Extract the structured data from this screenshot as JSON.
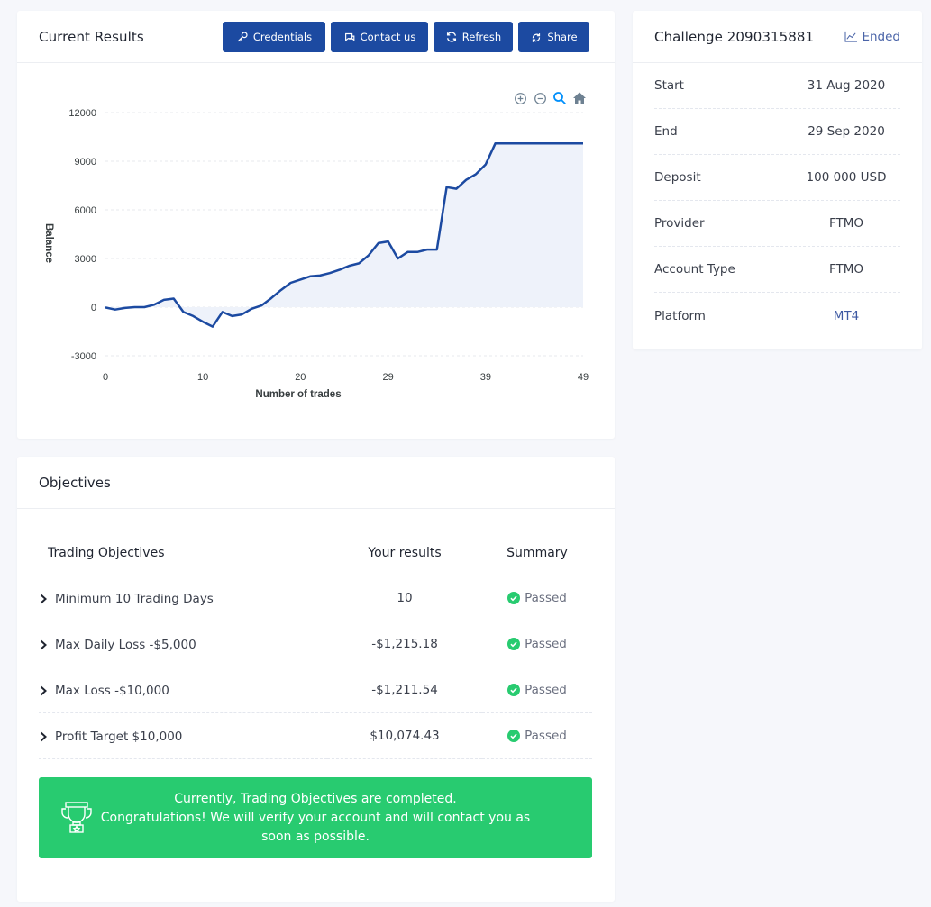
{
  "results": {
    "title": "Current Results",
    "buttons": {
      "credentials": "Credentials",
      "contact": "Contact us",
      "refresh": "Refresh",
      "share": "Share"
    }
  },
  "chart_data": {
    "type": "area",
    "xlabel": "Number of trades",
    "ylabel": "Balance",
    "xlim": [
      0,
      49
    ],
    "ylim": [
      -3000,
      12000
    ],
    "x_ticks": [
      0,
      10,
      20,
      29,
      39,
      49
    ],
    "y_ticks": [
      12000,
      9000,
      6000,
      3000,
      0,
      -3000
    ],
    "line_color": "#1c4aa1",
    "fill_color": "#eef2fa",
    "grid": "horizontal dashed",
    "x": [
      0,
      1,
      2,
      3,
      4,
      5,
      6,
      7,
      8,
      9,
      10,
      11,
      12,
      13,
      14,
      15,
      16,
      17,
      18,
      19,
      20,
      21,
      22,
      23,
      24,
      25,
      26,
      27,
      28,
      29,
      30,
      31,
      32,
      33,
      34,
      35,
      36,
      37,
      38,
      39,
      40,
      41,
      42,
      43,
      44,
      45,
      46,
      47,
      48,
      49
    ],
    "y": [
      -20,
      -150,
      -50,
      0,
      0,
      150,
      450,
      530,
      -300,
      -550,
      -900,
      -1200,
      -300,
      -550,
      -450,
      -100,
      100,
      550,
      1050,
      1500,
      1700,
      1900,
      1950,
      2100,
      2300,
      2550,
      2700,
      3200,
      3950,
      4050,
      3000,
      3400,
      3400,
      3550,
      3550,
      7400,
      7300,
      7850,
      8200,
      8800,
      10100,
      10100,
      10100,
      10100,
      10100,
      10100,
      10100,
      10100,
      10100,
      10100
    ]
  },
  "challenge": {
    "title": "Challenge 2090315881",
    "status": "Ended",
    "rows": [
      {
        "label": "Start",
        "value": "31 Aug 2020"
      },
      {
        "label": "End",
        "value": "29 Sep 2020"
      },
      {
        "label": "Deposit",
        "value": "100 000 USD"
      },
      {
        "label": "Provider",
        "value": "FTMO"
      },
      {
        "label": "Account Type",
        "value": "FTMO"
      },
      {
        "label": "Platform",
        "value": "MT4"
      }
    ]
  },
  "objectives": {
    "title": "Objectives",
    "headers": {
      "objective": "Trading Objectives",
      "results": "Your results",
      "summary": "Summary"
    },
    "rows": [
      {
        "objective": "Minimum 10 Trading Days",
        "result": "10",
        "summary": "Passed"
      },
      {
        "objective": "Max Daily Loss -$5,000",
        "result": "-$1,215.18",
        "summary": "Passed"
      },
      {
        "objective": "Max Loss -$10,000",
        "result": "-$1,211.54",
        "summary": "Passed"
      },
      {
        "objective": "Profit Target $10,000",
        "result": "$10,074.43",
        "summary": "Passed"
      }
    ],
    "banner": {
      "line1": "Currently, Trading Objectives are completed.",
      "line2": "Congratulations! We will verify your account and will contact you as soon as possible."
    },
    "pass_color": "#28cb70"
  }
}
